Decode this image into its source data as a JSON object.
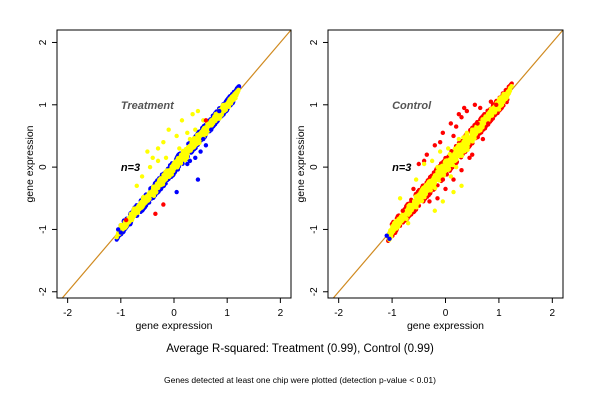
{
  "chart_data": [
    {
      "type": "scatter",
      "title": "",
      "annotations": {
        "group": "Treatment",
        "n": "n=3"
      },
      "xlabel": "gene expression",
      "ylabel": "gene expression",
      "xlim": [
        -2.2,
        2.2
      ],
      "ylim": [
        -2.1,
        2.2
      ],
      "xticks": [
        -2,
        -1,
        0,
        1,
        2
      ],
      "yticks": [
        -2,
        -1,
        0,
        1,
        2
      ],
      "diagonal_line": {
        "from": [
          -2.2,
          -2.2
        ],
        "to": [
          2.2,
          2.2
        ],
        "color": "#d08a20"
      },
      "cloud": {
        "color": "#ffff00",
        "edge_color": "#0000ff",
        "x_range": [
          -1.05,
          1.2
        ],
        "width": 0.14
      },
      "outliers": [
        {
          "color": "#ffff00",
          "points": [
            [
              -0.5,
              0.25
            ],
            [
              -0.4,
              0.15
            ],
            [
              -0.3,
              0.3
            ],
            [
              -0.2,
              0.4
            ],
            [
              -0.1,
              0.6
            ],
            [
              0.05,
              0.5
            ],
            [
              0.15,
              0.75
            ],
            [
              0.25,
              0.55
            ],
            [
              0.35,
              0.85
            ],
            [
              0.4,
              0.6
            ],
            [
              -0.6,
              -0.15
            ],
            [
              -0.45,
              0.0
            ],
            [
              -0.7,
              -0.3
            ],
            [
              0.1,
              0.3
            ],
            [
              0.2,
              0.2
            ],
            [
              -0.15,
              0.15
            ],
            [
              -0.3,
              0.1
            ],
            [
              0.55,
              0.75
            ],
            [
              0.45,
              0.9
            ],
            [
              0.3,
              0.45
            ]
          ]
        },
        {
          "color": "#0000ff",
          "points": [
            [
              0.5,
              0.25
            ],
            [
              0.4,
              0.15
            ],
            [
              0.25,
              0.05
            ],
            [
              0.45,
              -0.2
            ],
            [
              0.05,
              -0.4
            ],
            [
              0.7,
              0.6
            ],
            [
              0.6,
              0.35
            ],
            [
              0.85,
              0.9
            ],
            [
              -1.0,
              -1.05
            ],
            [
              -1.05,
              -1.0
            ],
            [
              0.3,
              0.1
            ],
            [
              0.55,
              0.45
            ]
          ]
        },
        {
          "color": "#ff0000",
          "points": [
            [
              -0.35,
              -0.75
            ],
            [
              -0.2,
              -0.6
            ],
            [
              -0.9,
              -0.85
            ],
            [
              0.6,
              0.75
            ]
          ]
        }
      ]
    },
    {
      "type": "scatter",
      "title": "",
      "annotations": {
        "group": "Control",
        "n": "n=3"
      },
      "xlabel": "gene expression",
      "ylabel": "gene expression",
      "xlim": [
        -2.2,
        2.2
      ],
      "ylim": [
        -2.1,
        2.2
      ],
      "xticks": [
        -2,
        -1,
        0,
        1,
        2
      ],
      "yticks": [
        -2,
        -1,
        0,
        1,
        2
      ],
      "diagonal_line": {
        "from": [
          -2.2,
          -2.2
        ],
        "to": [
          2.2,
          2.2
        ],
        "color": "#d08a20"
      },
      "cloud": {
        "color": "#ffff00",
        "edge_color": "#ff0000",
        "x_range": [
          -1.05,
          1.2
        ],
        "width": 0.18
      },
      "outliers": [
        {
          "color": "#ff0000",
          "points": [
            [
              -0.5,
              0.05
            ],
            [
              -0.35,
              0.2
            ],
            [
              -0.2,
              0.35
            ],
            [
              -0.05,
              0.55
            ],
            [
              0.1,
              0.7
            ],
            [
              0.25,
              0.85
            ],
            [
              0.35,
              0.95
            ],
            [
              0.4,
              0.9
            ],
            [
              0.55,
              1.0
            ],
            [
              0.65,
              0.95
            ],
            [
              0.3,
              0.8
            ],
            [
              0.2,
              0.65
            ],
            [
              -0.1,
              0.4
            ],
            [
              0.0,
              -0.35
            ],
            [
              0.15,
              -0.2
            ],
            [
              0.3,
              -0.05
            ],
            [
              0.5,
              0.2
            ],
            [
              0.7,
              0.45
            ],
            [
              0.8,
              0.7
            ],
            [
              -0.3,
              -0.55
            ],
            [
              -0.15,
              -0.5
            ],
            [
              -0.6,
              -0.35
            ],
            [
              -0.8,
              -0.7
            ],
            [
              0.95,
              1.0
            ],
            [
              0.45,
              0.15
            ],
            [
              -0.05,
              -0.2
            ],
            [
              0.15,
              0.5
            ],
            [
              -0.4,
              0.1
            ],
            [
              0.6,
              0.7
            ],
            [
              0.85,
              1.05
            ]
          ]
        },
        {
          "color": "#ffff00",
          "points": [
            [
              -0.4,
              0.05
            ],
            [
              -0.25,
              0.1
            ],
            [
              -0.1,
              0.25
            ],
            [
              0.05,
              0.3
            ],
            [
              0.25,
              0.45
            ],
            [
              0.3,
              -0.3
            ],
            [
              0.15,
              -0.4
            ],
            [
              -0.2,
              -0.7
            ],
            [
              -0.05,
              -0.55
            ],
            [
              0.4,
              0.55
            ],
            [
              -0.55,
              -0.2
            ],
            [
              -0.7,
              -0.9
            ],
            [
              -0.85,
              -0.5
            ],
            [
              0.1,
              -0.15
            ],
            [
              -0.3,
              -0.25
            ],
            [
              0.5,
              0.6
            ],
            [
              0.0,
              0.1
            ],
            [
              -0.15,
              0.0
            ],
            [
              0.35,
              0.3
            ],
            [
              0.2,
              0.0
            ]
          ]
        },
        {
          "color": "#0000ff",
          "points": [
            [
              -1.1,
              -1.1
            ],
            [
              -1.05,
              -1.15
            ]
          ]
        }
      ]
    }
  ],
  "caption": {
    "r_squared": "Average R-squared: Treatment (0.99), Control (0.99)",
    "note": "Genes detected at least one chip were plotted (detection p-value < 0.01)"
  }
}
